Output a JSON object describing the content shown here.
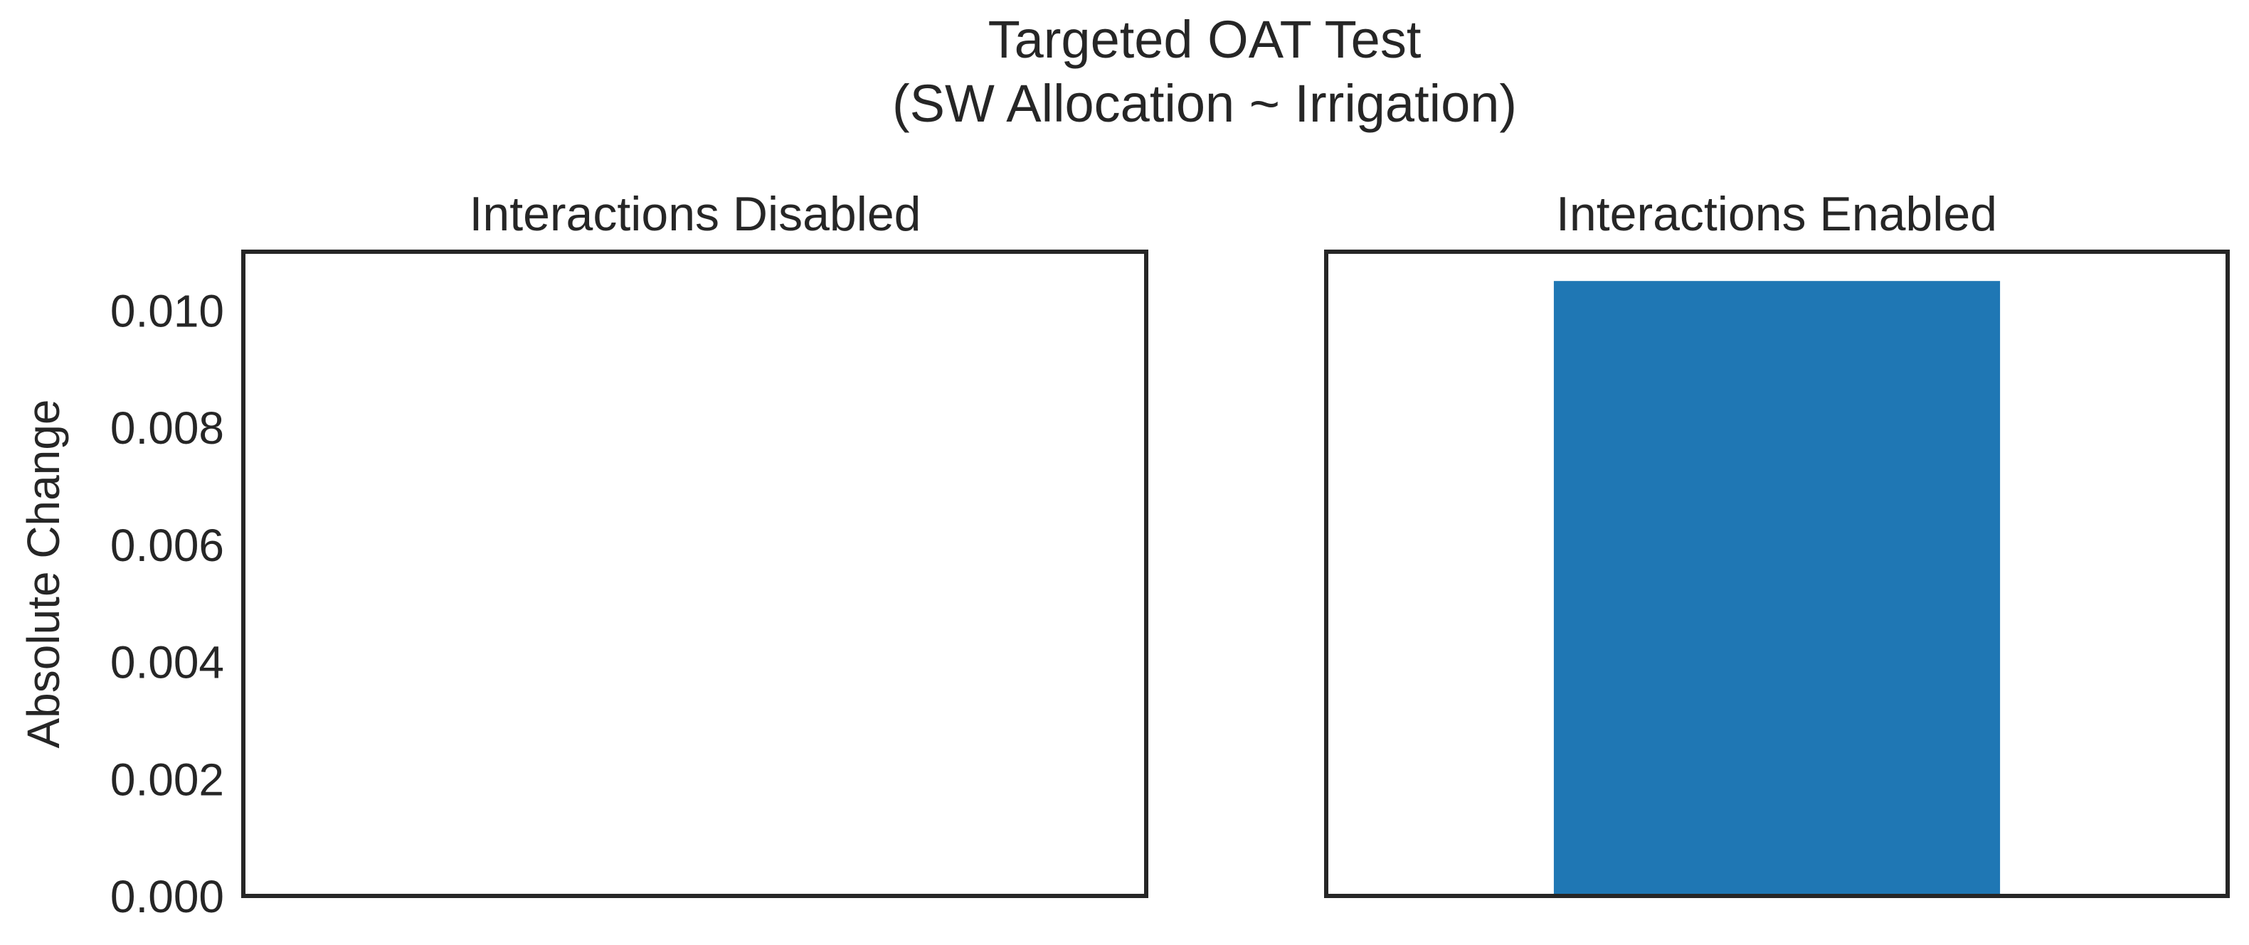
{
  "figure": {
    "title_line1": "Targeted OAT Test",
    "title_line2": "(SW Allocation ~ Irrigation)"
  },
  "chart_data": [
    {
      "type": "bar",
      "title": "Interactions Disabled",
      "ylabel": "Absolute Change",
      "xlabel": "",
      "categories": [
        ""
      ],
      "values": [
        0.0
      ],
      "ylim": [
        0,
        0.011
      ],
      "yticks": [
        "0.000",
        "0.002",
        "0.004",
        "0.006",
        "0.008",
        "0.010"
      ],
      "grid": false,
      "bar_color": "#1f77b4"
    },
    {
      "type": "bar",
      "title": "Interactions Enabled",
      "ylabel": "",
      "xlabel": "",
      "categories": [
        ""
      ],
      "values": [
        0.0105
      ],
      "ylim": [
        0,
        0.011
      ],
      "yticks": [],
      "grid": false,
      "bar_color": "#1f77b4"
    }
  ]
}
